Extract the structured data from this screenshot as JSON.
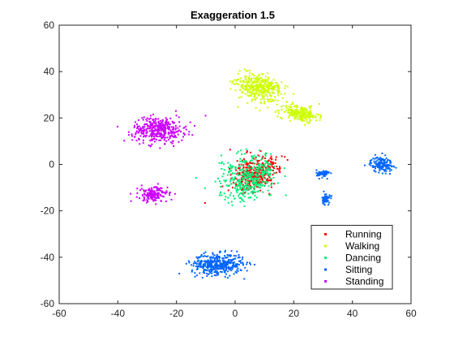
{
  "chart_data": {
    "type": "scatter",
    "title": "Exaggeration 1.5",
    "xlabel": "",
    "ylabel": "",
    "xlim": [
      -60,
      60
    ],
    "ylim": [
      -60,
      60
    ],
    "xticks": [
      "-60",
      "-40",
      "-20",
      "0",
      "20",
      "40",
      "60"
    ],
    "yticks": [
      "60",
      "40",
      "20",
      "0",
      "-20",
      "-40",
      "-60"
    ],
    "grid": false,
    "legend_position": "bottom-right",
    "series": [
      {
        "name": "Running",
        "color": "#ff0000",
        "clusters": [
          {
            "center": [
              7,
              -4
            ],
            "spread": [
              6,
              9
            ],
            "count": 340,
            "angle": -40
          }
        ]
      },
      {
        "name": "Walking",
        "color": "#ccff00",
        "clusters": [
          {
            "center": [
              8,
              33
            ],
            "spread": [
              7,
              5
            ],
            "count": 360,
            "angle": -30
          },
          {
            "center": [
              22,
              22
            ],
            "spread": [
              6,
              3
            ],
            "count": 200,
            "angle": -15
          }
        ]
      },
      {
        "name": "Dancing",
        "color": "#00ee77",
        "clusters": [
          {
            "center": [
              5,
              -6
            ],
            "spread": [
              8,
              10
            ],
            "count": 380,
            "angle": -40
          }
        ]
      },
      {
        "name": "Sitting",
        "color": "#0066ff",
        "clusters": [
          {
            "center": [
              -6,
              -43
            ],
            "spread": [
              8,
              4
            ],
            "count": 420,
            "angle": 0
          },
          {
            "center": [
              50,
              0
            ],
            "spread": [
              3.5,
              3
            ],
            "count": 150,
            "angle": 0
          },
          {
            "center": [
              30,
              -4
            ],
            "spread": [
              2,
              1.5
            ],
            "count": 60,
            "angle": 0
          },
          {
            "center": [
              31,
              -15
            ],
            "spread": [
              1.2,
              2.2
            ],
            "count": 50,
            "angle": 0
          }
        ]
      },
      {
        "name": "Standing",
        "color": "#cc00ff",
        "clusters": [
          {
            "center": [
              -26,
              15
            ],
            "spread": [
              8,
              5
            ],
            "count": 380,
            "angle": 0
          },
          {
            "center": [
              -28,
              -13
            ],
            "spread": [
              4.5,
              3
            ],
            "count": 170,
            "angle": 0
          }
        ]
      }
    ]
  }
}
